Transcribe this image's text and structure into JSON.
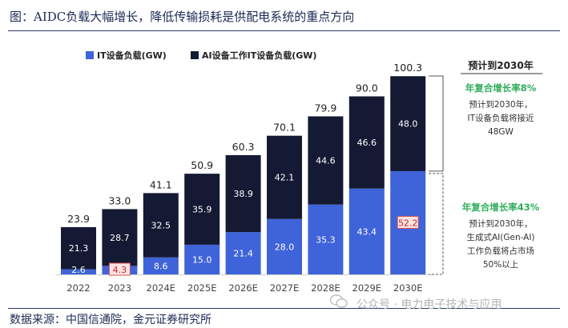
{
  "title": "图：AIDC负载大幅增长，降低传输损耗是供配电系统的重点方向",
  "source": "数据来源：中国信通院，金元证券研究所",
  "watermark": "公众号 · 电力电子技术与应用",
  "colors": {
    "it": "#3f63d8",
    "ai": "#141a33",
    "green": "#2fae5a",
    "highlight_border": "#d9534f",
    "highlight_bg": "#fbe3e3",
    "highlight_text": "#c62828"
  },
  "chart_data": {
    "type": "bar",
    "stacked": true,
    "categories": [
      "2022",
      "2023",
      "2024E",
      "2025E",
      "2026E",
      "2027E",
      "2028E",
      "2029E",
      "2030E"
    ],
    "series": [
      {
        "name": "IT设备负载(GW)",
        "values": [
          2.6,
          4.3,
          8.6,
          15.0,
          21.4,
          28.0,
          35.3,
          43.4,
          52.2
        ]
      },
      {
        "name": "AI设备工作IT设备负载(GW)",
        "values": [
          21.3,
          28.7,
          32.5,
          35.9,
          38.9,
          42.1,
          44.6,
          46.6,
          48.0
        ]
      }
    ],
    "totals": [
      23.9,
      33.0,
      41.1,
      50.9,
      60.3,
      70.1,
      79.9,
      90.0,
      100.3
    ],
    "series_labels": [
      [
        "2.6",
        "4.3",
        "8.6",
        "15.0",
        "21.4",
        "28.0",
        "35.3",
        "43.4",
        "52.2"
      ],
      [
        "21.3",
        "28.7",
        "32.5",
        "35.9",
        "38.9",
        "42.1",
        "44.6",
        "46.6",
        "48.0"
      ]
    ],
    "total_labels": [
      "23.9",
      "33.0",
      "41.1",
      "50.9",
      "60.3",
      "70.1",
      "79.9",
      "90.0",
      "100.3"
    ],
    "highlighted": [
      {
        "series": 0,
        "index": 1
      },
      {
        "series": 0,
        "index": 8
      }
    ],
    "legend_position": "top-left",
    "ylim": [
      0,
      100.3
    ],
    "annotations": {
      "heading": "预计到2030年",
      "upper": {
        "rate": "年复合增长率8%",
        "lines": [
          "预计到2030年，",
          "IT设备负载将接近",
          "48GW"
        ]
      },
      "lower": {
        "rate": "年复合增长率43%",
        "lines": [
          "预计到2030年，",
          "生成式AI(Gen-AI)",
          "工作负载将占市场",
          "50%以上"
        ]
      }
    }
  }
}
